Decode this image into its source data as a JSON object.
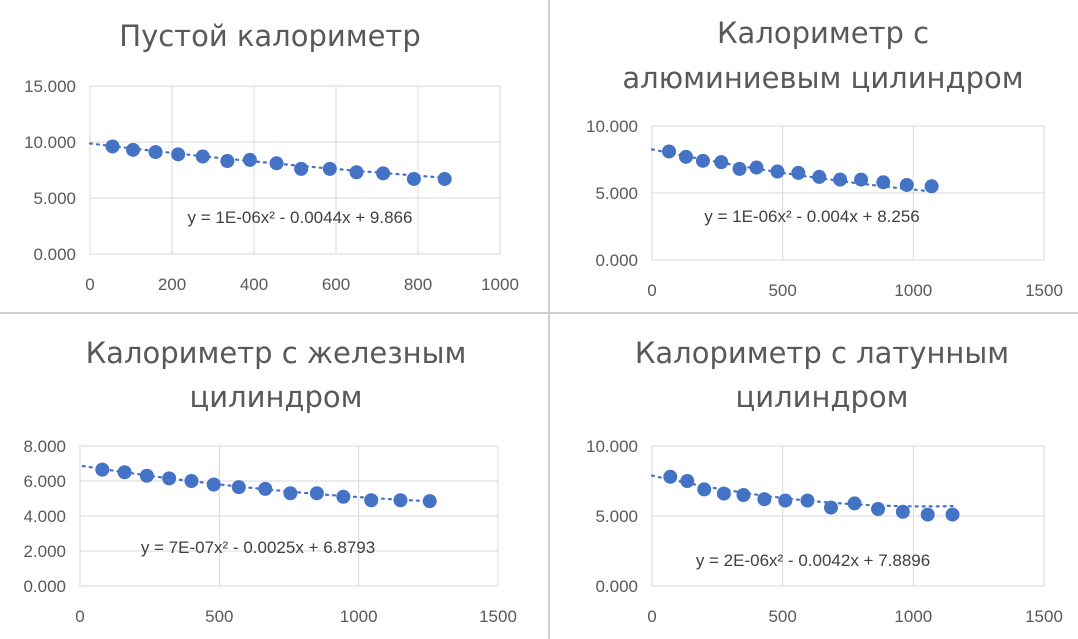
{
  "chart_data": [
    {
      "type": "scatter",
      "title_lines": [
        "Пустой калориметр"
      ],
      "xlim": [
        0,
        1000
      ],
      "ylim": [
        0,
        15
      ],
      "x_ticks": [
        "0",
        "200",
        "400",
        "600",
        "800",
        "1000"
      ],
      "y_ticks": [
        "0.000",
        "5.000",
        "10.000",
        "15.000"
      ],
      "grid": true,
      "x": [
        55,
        105,
        160,
        215,
        275,
        335,
        390,
        455,
        515,
        585,
        650,
        715,
        790,
        865
      ],
      "y": [
        9.6,
        9.3,
        9.1,
        8.9,
        8.7,
        8.3,
        8.4,
        8.1,
        7.6,
        7.6,
        7.3,
        7.2,
        6.7,
        6.7
      ],
      "trendline": {
        "type": "polynomial",
        "a": 1e-06,
        "b": -0.0044,
        "c": 9.866
      },
      "trendline_label": "y = 1E-06x² - 0.0044x + 9.866"
    },
    {
      "type": "scatter",
      "title_lines": [
        "Калориметр с",
        "алюминиевым цилиндром"
      ],
      "xlim": [
        0,
        1500
      ],
      "ylim": [
        0,
        10
      ],
      "x_ticks": [
        "0",
        "500",
        "1000",
        "1500"
      ],
      "y_ticks": [
        "0.000",
        "5.000",
        "10.000"
      ],
      "grid": true,
      "x": [
        65,
        130,
        195,
        265,
        335,
        400,
        480,
        560,
        640,
        720,
        800,
        885,
        975,
        1070
      ],
      "y": [
        8.1,
        7.7,
        7.4,
        7.3,
        6.8,
        6.9,
        6.6,
        6.5,
        6.2,
        6.0,
        6.0,
        5.8,
        5.6,
        5.5
      ],
      "trendline": {
        "type": "polynomial",
        "a": 1e-06,
        "b": -0.004,
        "c": 8.256
      },
      "trendline_label": "y = 1E-06x² - 0.004x + 8.256"
    },
    {
      "type": "scatter",
      "title_lines": [
        "Калориметр с железным",
        "цилиндром"
      ],
      "xlim": [
        0,
        1500
      ],
      "ylim": [
        0,
        8
      ],
      "x_ticks": [
        "0",
        "500",
        "1000",
        "1500"
      ],
      "y_ticks": [
        "0.000",
        "2.000",
        "4.000",
        "6.000",
        "8.000"
      ],
      "grid": true,
      "x": [
        80,
        160,
        240,
        320,
        400,
        480,
        570,
        665,
        755,
        850,
        945,
        1045,
        1150,
        1255
      ],
      "y": [
        6.65,
        6.5,
        6.3,
        6.15,
        6.0,
        5.8,
        5.65,
        5.55,
        5.3,
        5.3,
        5.1,
        4.9,
        4.9,
        4.85
      ],
      "trendline": {
        "type": "polynomial",
        "a": 7e-07,
        "b": -0.0025,
        "c": 6.8793
      },
      "trendline_label": "y = 7E-07x² - 0.0025x + 6.8793"
    },
    {
      "type": "scatter",
      "title_lines": [
        "Калориметр с латунным",
        "цилиндром"
      ],
      "xlim": [
        0,
        1500
      ],
      "ylim": [
        0,
        10
      ],
      "x_ticks": [
        "0",
        "500",
        "1000",
        "1500"
      ],
      "y_ticks": [
        "0.000",
        "5.000",
        "10.000"
      ],
      "grid": true,
      "x": [
        70,
        135,
        200,
        275,
        350,
        430,
        510,
        595,
        685,
        775,
        865,
        960,
        1055,
        1150
      ],
      "y": [
        7.8,
        7.5,
        6.9,
        6.6,
        6.5,
        6.2,
        6.1,
        6.1,
        5.6,
        5.9,
        5.5,
        5.3,
        5.1,
        5.1
      ],
      "trendline": {
        "type": "polynomial",
        "a": 2e-06,
        "b": -0.0042,
        "c": 7.8896
      },
      "trendline_label": "y = 2E-06x² - 0.0042x + 7.8896"
    }
  ],
  "colors": {
    "marker": "#4472c4",
    "trend": "#4472c4",
    "grid": "#d9d9d9",
    "text": "#595959"
  }
}
